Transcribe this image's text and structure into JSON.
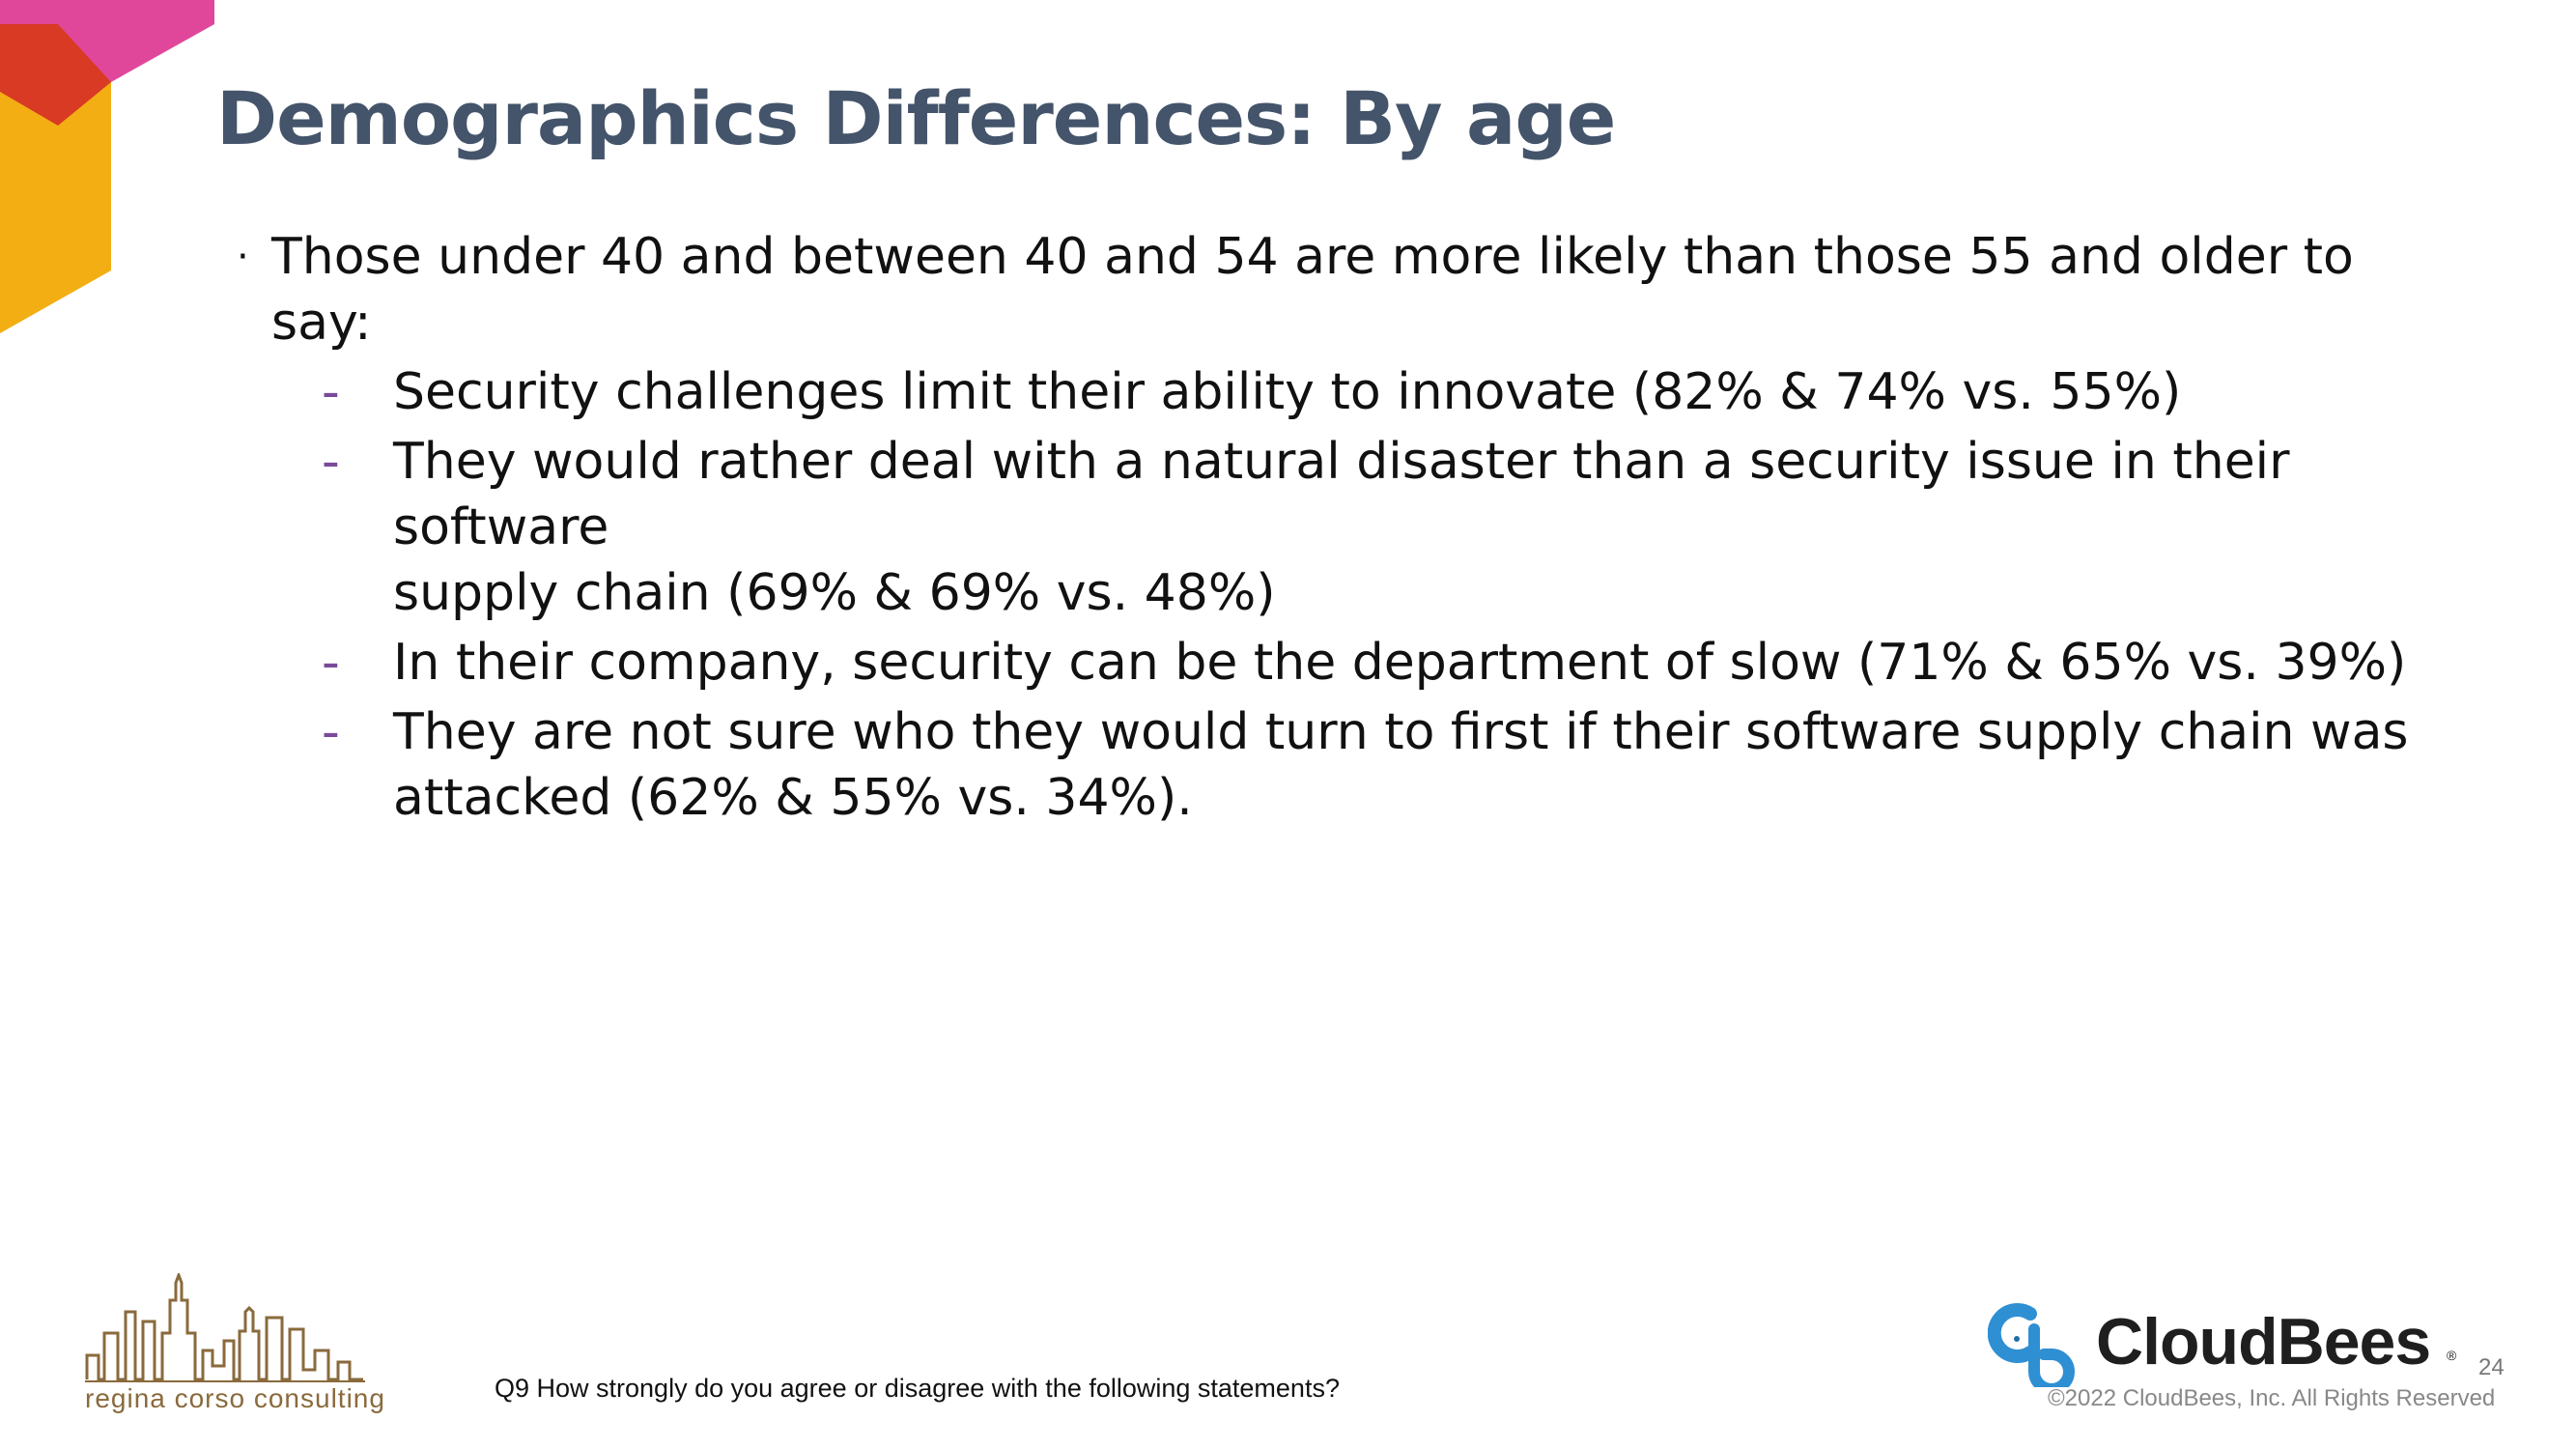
{
  "slide": {
    "title": "Demographics Differences: By age",
    "bullet": "Those under 40 and between 40 and 54 are more likely than those 55 and older to say:",
    "bullet_symbol": "·",
    "dash_symbol": "-",
    "sub_items": [
      [
        "Security challenges limit their ability to innovate (82% & 74% vs. 55%)"
      ],
      [
        "They would rather deal with a natural disaster than a security issue in their software",
        "supply chain (69% & 69% vs. 48%)"
      ],
      [
        "In their company, security can be the department of slow (71% & 65% vs. 39%)"
      ],
      [
        "They are not sure who they would turn to first if their software supply chain was",
        "attacked (62% & 55% vs. 34%)."
      ]
    ]
  },
  "footer": {
    "question": "Q9 How strongly do you agree or disagree with the following statements?",
    "consultant_name": "regina corso consulting",
    "brand": "CloudBees",
    "brand_reg": "®",
    "copyright": "©2022 CloudBees, Inc. All Rights Reserved",
    "page_number": "24"
  },
  "icons": {
    "corner": "corner-hexagon-decoration",
    "consultant_logo": "city-skyline-icon",
    "brand_logo": "cloudbees-logo-icon"
  },
  "colors": {
    "title": "#44546a",
    "corner_pink": "#e0479b",
    "corner_red": "#d83a23",
    "corner_yellow": "#f3ae14",
    "dash": "#7a4a9a",
    "brand_blue": "#2f8fd3",
    "skyline": "#8a6a3c"
  }
}
